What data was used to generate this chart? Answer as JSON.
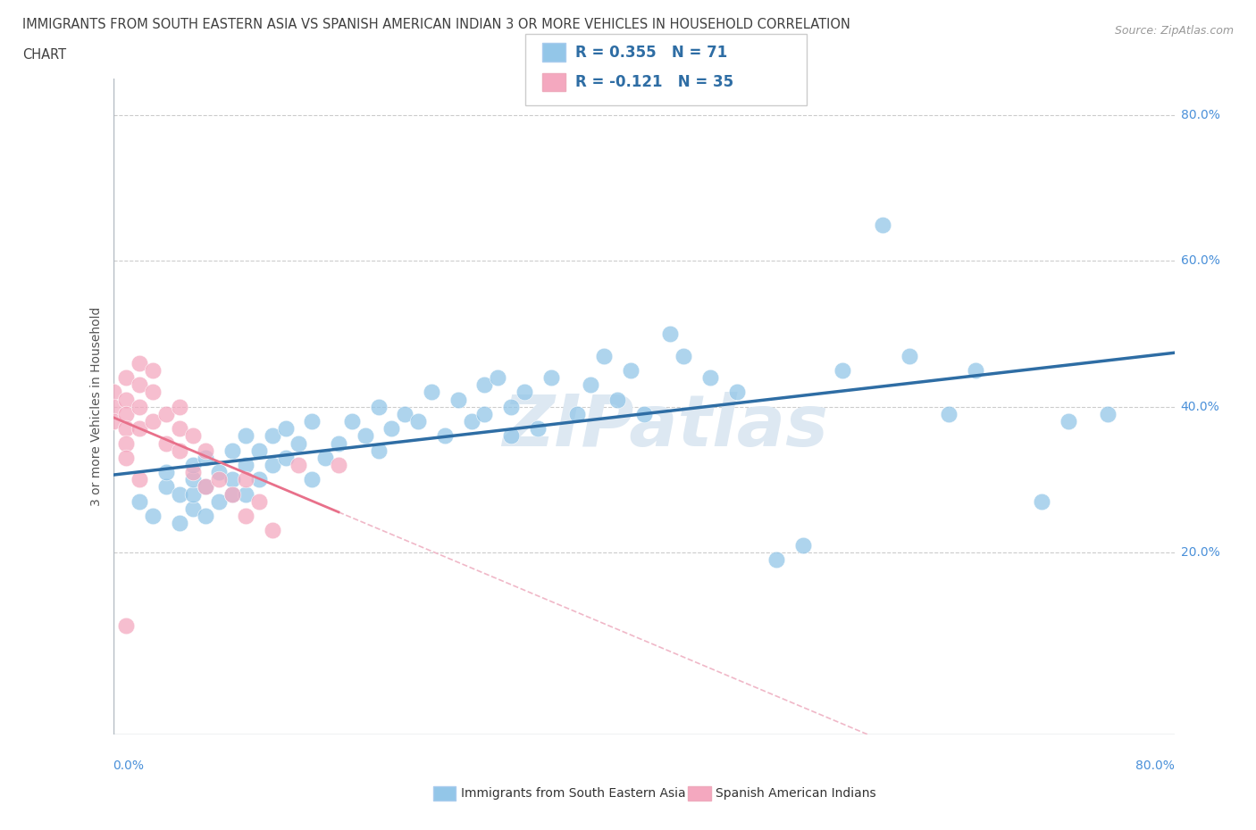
{
  "title_line1": "IMMIGRANTS FROM SOUTH EASTERN ASIA VS SPANISH AMERICAN INDIAN 3 OR MORE VEHICLES IN HOUSEHOLD CORRELATION",
  "title_line2": "CHART",
  "source": "Source: ZipAtlas.com",
  "ylabel": "3 or more Vehicles in Household",
  "xlim": [
    0.0,
    0.8
  ],
  "ylim": [
    -0.05,
    0.85
  ],
  "color_blue": "#93c6e8",
  "color_pink": "#f4a8bf",
  "trend_blue_color": "#2e6da4",
  "trend_pink_color": "#e8708a",
  "trend_pink_dash_color": "#f0b8c8",
  "watermark": "ZIPatlas",
  "legend_label1": "Immigrants from South Eastern Asia",
  "legend_label2": "Spanish American Indians",
  "blue_scatter_x": [
    0.02,
    0.03,
    0.04,
    0.04,
    0.05,
    0.05,
    0.06,
    0.06,
    0.06,
    0.06,
    0.07,
    0.07,
    0.07,
    0.08,
    0.08,
    0.09,
    0.09,
    0.09,
    0.1,
    0.1,
    0.1,
    0.11,
    0.11,
    0.12,
    0.12,
    0.13,
    0.13,
    0.14,
    0.15,
    0.15,
    0.16,
    0.17,
    0.18,
    0.19,
    0.2,
    0.2,
    0.21,
    0.22,
    0.23,
    0.24,
    0.25,
    0.26,
    0.27,
    0.28,
    0.28,
    0.29,
    0.3,
    0.3,
    0.31,
    0.32,
    0.33,
    0.35,
    0.36,
    0.37,
    0.38,
    0.39,
    0.4,
    0.42,
    0.43,
    0.45,
    0.47,
    0.5,
    0.52,
    0.55,
    0.58,
    0.6,
    0.63,
    0.65,
    0.7,
    0.72,
    0.75
  ],
  "blue_scatter_y": [
    0.27,
    0.25,
    0.29,
    0.31,
    0.24,
    0.28,
    0.26,
    0.28,
    0.3,
    0.32,
    0.25,
    0.29,
    0.33,
    0.27,
    0.31,
    0.28,
    0.3,
    0.34,
    0.28,
    0.32,
    0.36,
    0.3,
    0.34,
    0.32,
    0.36,
    0.33,
    0.37,
    0.35,
    0.3,
    0.38,
    0.33,
    0.35,
    0.38,
    0.36,
    0.34,
    0.4,
    0.37,
    0.39,
    0.38,
    0.42,
    0.36,
    0.41,
    0.38,
    0.43,
    0.39,
    0.44,
    0.36,
    0.4,
    0.42,
    0.37,
    0.44,
    0.39,
    0.43,
    0.47,
    0.41,
    0.45,
    0.39,
    0.5,
    0.47,
    0.44,
    0.42,
    0.19,
    0.21,
    0.45,
    0.65,
    0.47,
    0.39,
    0.45,
    0.27,
    0.38,
    0.39
  ],
  "pink_scatter_x": [
    0.0,
    0.0,
    0.0,
    0.01,
    0.01,
    0.01,
    0.01,
    0.01,
    0.01,
    0.01,
    0.02,
    0.02,
    0.02,
    0.02,
    0.02,
    0.03,
    0.03,
    0.03,
    0.04,
    0.04,
    0.05,
    0.05,
    0.05,
    0.06,
    0.06,
    0.07,
    0.07,
    0.08,
    0.09,
    0.1,
    0.1,
    0.11,
    0.12,
    0.14,
    0.17
  ],
  "pink_scatter_y": [
    0.42,
    0.4,
    0.38,
    0.44,
    0.41,
    0.39,
    0.37,
    0.35,
    0.33,
    0.1,
    0.46,
    0.43,
    0.4,
    0.37,
    0.3,
    0.45,
    0.42,
    0.38,
    0.39,
    0.35,
    0.4,
    0.37,
    0.34,
    0.36,
    0.31,
    0.34,
    0.29,
    0.3,
    0.28,
    0.3,
    0.25,
    0.27,
    0.23,
    0.32,
    0.32
  ],
  "hline_values": [
    0.2,
    0.4,
    0.6,
    0.8
  ],
  "ytick_labels": [
    "20.0%",
    "40.0%",
    "60.0%",
    "80.0%"
  ],
  "background_color": "#ffffff",
  "watermark_color": "#dde8f2",
  "axis_line_color": "#b0b8c0"
}
